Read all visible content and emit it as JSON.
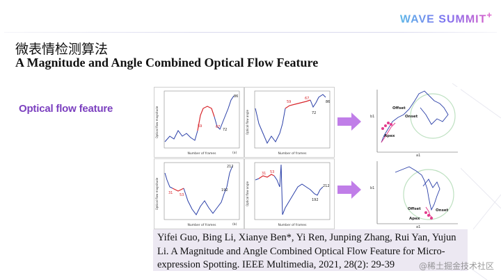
{
  "brand": {
    "logo_text": "WAVE SUMMIT",
    "logo_suffix": "+"
  },
  "slide": {
    "title_cn": "微表情检测算法",
    "title_en": "A Magnitude and Angle Combined Optical Flow Feature",
    "section_label": "Optical flow feature"
  },
  "figures": {
    "panel_a_caption": "(a)",
    "panel_b_caption": "(b)",
    "xlabel": "Number of frames",
    "ylabel_magnitude": "Optical flow magnitude",
    "ylabel_angle": "Optical flow angle",
    "top_mag_labels": [
      "59",
      "67",
      "72",
      "86"
    ],
    "top_ang_labels": [
      "59",
      "67",
      "72",
      "86"
    ],
    "bottom_mag_labels": [
      "31",
      "53",
      "192",
      "212"
    ],
    "bottom_ang_labels": [
      "31",
      "53",
      "192",
      "212"
    ],
    "scatter_top_labels": [
      "Offset",
      "Apex",
      "Onset"
    ],
    "scatter_bottom_labels": [
      "Offset",
      "Onset",
      "Apex"
    ],
    "axis_b1": "b1",
    "axis_a1": "a1"
  },
  "colors": {
    "curve": "#2a3fa8",
    "highlight": "#d8242a",
    "pink": "#e23c8c",
    "arrow": "#c07ee8"
  },
  "reference": {
    "text": "Yifei Guo, Bing Li, Xianye Ben*, Yi Ren, Junping Zhang, Rui Yan, Yujun Li. A Magnitude and Angle Combined Optical Flow Feature for Micro-expression Spotting. IEEE Multimedia, 2021, 28(2): 29-39"
  },
  "watermark": "@稀土掘金技术社区"
}
